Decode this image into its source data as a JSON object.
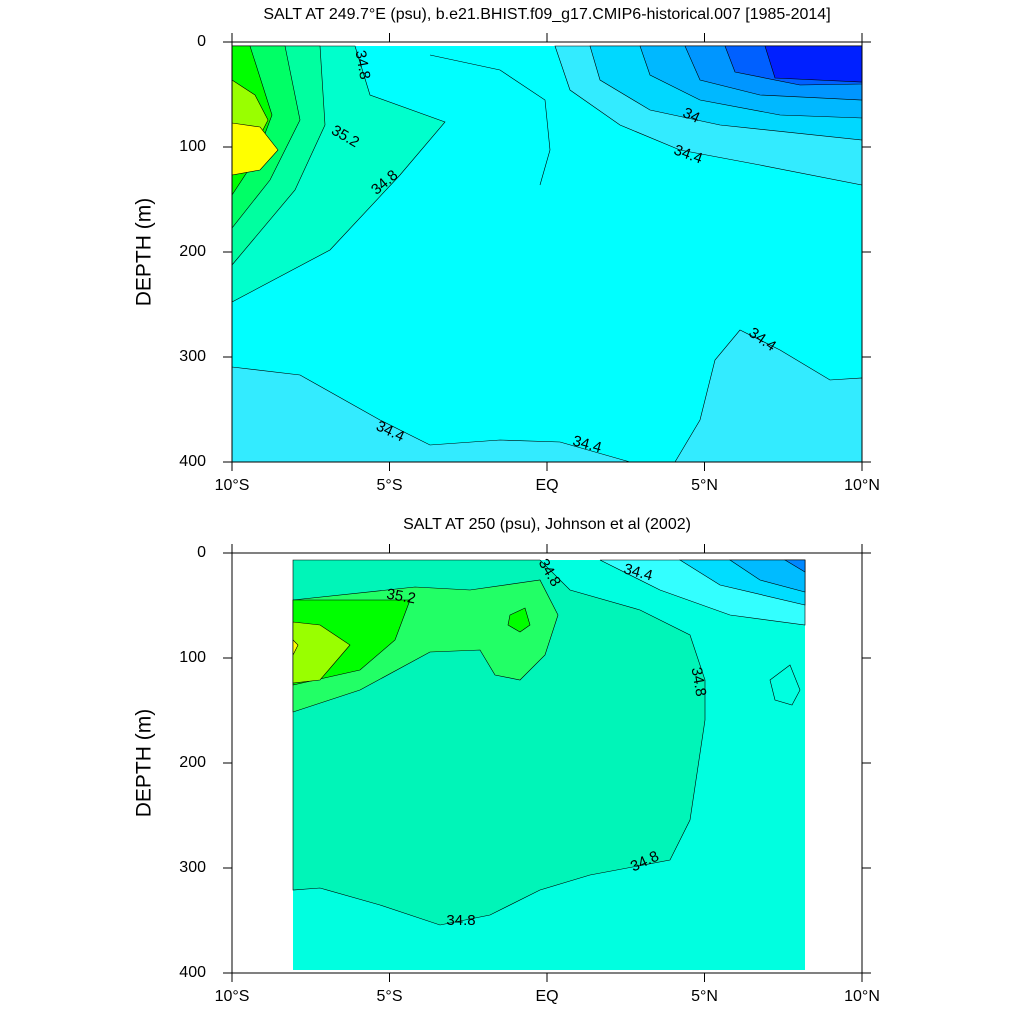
{
  "chart_data": [
    {
      "type": "contour",
      "title": "SALT AT 249.7°E (psu), b.e21.BHIST.f09_g17.CMIP6-historical.007 [1985-2014]",
      "y_label": "DEPTH (m)",
      "xlim": [
        -10,
        10
      ],
      "xticks": [
        {
          "value": -10,
          "label": "10°S"
        },
        {
          "value": -5,
          "label": "5°S"
        },
        {
          "value": 0,
          "label": "EQ"
        },
        {
          "value": 5,
          "label": "5°N"
        },
        {
          "value": 10,
          "label": "10°N"
        }
      ],
      "ylim": [
        400,
        0
      ],
      "yticks": [
        0,
        100,
        200,
        300,
        400
      ],
      "contour_labels": [
        34.8,
        35.2,
        34.8,
        34,
        34.4,
        34.4,
        34.4,
        34.4
      ],
      "colors": [
        "#00ffff",
        "#33ebff",
        "#00d8ff",
        "#00b8ff",
        "#0096ff",
        "#0060ff",
        "#0020ff",
        "#00ffcc",
        "#00ffa0",
        "#00ff66",
        "#00ff00",
        "#99ff00",
        "#ffff00"
      ]
    },
    {
      "type": "contour",
      "title": "SALT AT 250 (psu), Johnson et al (2002)",
      "y_label": "DEPTH (m)",
      "xlim": [
        -10,
        10
      ],
      "xticks": [
        {
          "value": -10,
          "label": "10°S"
        },
        {
          "value": -5,
          "label": "5°S"
        },
        {
          "value": 0,
          "label": "EQ"
        },
        {
          "value": 5,
          "label": "5°N"
        },
        {
          "value": 10,
          "label": "10°N"
        }
      ],
      "ylim": [
        400,
        0
      ],
      "yticks": [
        0,
        100,
        200,
        300,
        400
      ],
      "contour_labels": [
        34.8,
        34.4,
        35.2,
        34.8,
        34.8,
        34.8
      ],
      "colors": [
        "#00ffe0",
        "#00f5b8",
        "#22ff66",
        "#00ff00",
        "#99ff00",
        "#ffff00",
        "#33ffff",
        "#00ddff",
        "#00bbff",
        "#0088ff"
      ]
    }
  ]
}
